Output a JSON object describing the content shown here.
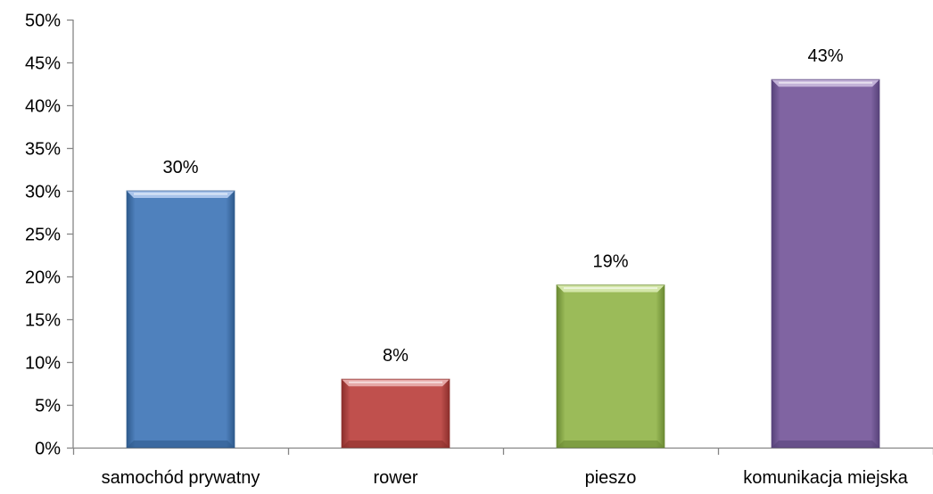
{
  "chart_data": {
    "type": "bar",
    "categories": [
      "samochód prywatny",
      "rower",
      "pieszo",
      "komunikacja miejska"
    ],
    "values": [
      30,
      8,
      19,
      43
    ],
    "data_labels": [
      "30%",
      "8%",
      "19%",
      "43%"
    ],
    "ylim": [
      0,
      50
    ],
    "y_ticks": [
      0,
      5,
      10,
      15,
      20,
      25,
      30,
      35,
      40,
      45,
      50
    ],
    "y_tick_labels": [
      "0%",
      "5%",
      "10%",
      "15%",
      "20%",
      "25%",
      "30%",
      "35%",
      "40%",
      "45%",
      "50%"
    ],
    "grid": false,
    "legend": "none",
    "title": "",
    "xlabel": "",
    "ylabel": "",
    "colors": [
      "#4F81BD",
      "#C0504D",
      "#9BBB59",
      "#8064A2"
    ],
    "highlight_colors": [
      "#A9C4EB",
      "#E6A8A7",
      "#D3E6A9",
      "#C3B2D8"
    ],
    "shadow_colors": [
      "#2E5A8C",
      "#8B2F2C",
      "#6B8A33",
      "#57427A"
    ],
    "axis_color": "#868686"
  }
}
